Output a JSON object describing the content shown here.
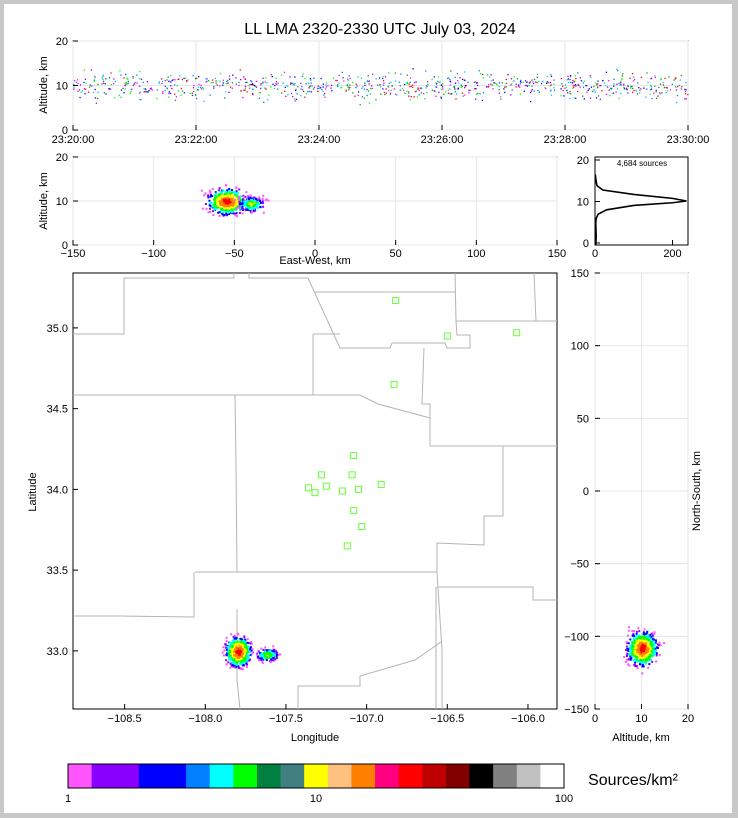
{
  "chart_data": [
    {
      "type": "scatter",
      "panel": "altitude-vs-time",
      "title": "LL LMA 2320-2330 UTC July 03, 2024",
      "xlabel": "",
      "ylabel": "Altitude, km",
      "xticks": [
        "23:20:00",
        "23:22:00",
        "23:24:00",
        "23:26:00",
        "23:28:00",
        "23:30:00"
      ],
      "yticks": [
        "0",
        "10",
        "20"
      ],
      "xlim_minutes": [
        0,
        10
      ],
      "ylim": [
        0,
        20
      ],
      "points": {
        "altitude_km_typical": 10,
        "altitude_km_range": [
          6,
          18
        ],
        "colored_by": "time"
      }
    },
    {
      "type": "heatmap",
      "panel": "altitude-vs-east-west",
      "xlabel": "East-West, km",
      "ylabel": "Altitude, km",
      "xticks": [
        "−150",
        "−100",
        "−50",
        "0",
        "50",
        "100",
        "150"
      ],
      "yticks": [
        "0",
        "10",
        "20"
      ],
      "xlim": [
        -150,
        150
      ],
      "ylim": [
        0,
        20
      ],
      "clusters": [
        {
          "x_km": -55,
          "alt_km": 10,
          "peak": "red"
        },
        {
          "x_km": -40,
          "alt_km": 9.5,
          "peak": "green"
        }
      ]
    },
    {
      "type": "line",
      "panel": "altitude-histogram",
      "annotation": "4,684 sources",
      "xticks": [
        "0",
        "200"
      ],
      "yticks": [
        "0",
        "10",
        "20"
      ],
      "xlim": [
        0,
        240
      ],
      "ylim": [
        0,
        20
      ],
      "profile": [
        {
          "count": 2,
          "alt": 0
        },
        {
          "count": 3,
          "alt": 2
        },
        {
          "count": 2,
          "alt": 5
        },
        {
          "count": 3,
          "alt": 6
        },
        {
          "count": 8,
          "alt": 7
        },
        {
          "count": 30,
          "alt": 8
        },
        {
          "count": 100,
          "alt": 9
        },
        {
          "count": 200,
          "alt": 9.6
        },
        {
          "count": 236,
          "alt": 10
        },
        {
          "count": 200,
          "alt": 10.6
        },
        {
          "count": 100,
          "alt": 11.5
        },
        {
          "count": 20,
          "alt": 12.5
        },
        {
          "count": 5,
          "alt": 13.5
        },
        {
          "count": 2,
          "alt": 15
        },
        {
          "count": 1,
          "alt": 16
        }
      ]
    },
    {
      "type": "heatmap",
      "panel": "map",
      "xlabel": "Longitude",
      "ylabel": "Latitude",
      "xticks": [
        "−108.5",
        "−108.0",
        "−107.5",
        "−107.0",
        "−106.5",
        "−106.0"
      ],
      "yticks": [
        "33.0",
        "33.5",
        "34.0",
        "34.5",
        "35.0"
      ],
      "xlim": [
        -108.82,
        -105.82
      ],
      "ylim": [
        32.64,
        35.34
      ],
      "clusters": [
        {
          "lon": -107.8,
          "lat": 33.0,
          "peak": "red"
        },
        {
          "lon": -107.62,
          "lat": 32.98,
          "peak": "green"
        }
      ],
      "stations": [
        {
          "lon": -106.82,
          "lat": 35.17
        },
        {
          "lon": -106.5,
          "lat": 34.95
        },
        {
          "lon": -106.07,
          "lat": 34.97
        },
        {
          "lon": -106.83,
          "lat": 34.65
        },
        {
          "lon": -107.08,
          "lat": 34.21
        },
        {
          "lon": -107.09,
          "lat": 34.09
        },
        {
          "lon": -107.28,
          "lat": 34.09
        },
        {
          "lon": -107.25,
          "lat": 34.02
        },
        {
          "lon": -107.36,
          "lat": 34.01
        },
        {
          "lon": -107.32,
          "lat": 33.98
        },
        {
          "lon": -107.15,
          "lat": 33.99
        },
        {
          "lon": -107.05,
          "lat": 34.0
        },
        {
          "lon": -106.91,
          "lat": 34.03
        },
        {
          "lon": -107.08,
          "lat": 33.87
        },
        {
          "lon": -107.03,
          "lat": 33.77
        },
        {
          "lon": -107.12,
          "lat": 33.65
        }
      ]
    },
    {
      "type": "heatmap",
      "panel": "north-south-vs-altitude",
      "xlabel": "Altitude, km",
      "ylabel": "North-South, km",
      "xticks": [
        "0",
        "10",
        "20"
      ],
      "yticks": [
        "150",
        "100",
        "50",
        "0",
        "−50",
        "−100",
        "−150"
      ],
      "xlim": [
        0,
        20
      ],
      "ylim": [
        -150,
        150
      ],
      "clusters": [
        {
          "alt_km": 10,
          "y_km": -108,
          "peak": "red"
        }
      ]
    },
    {
      "type": "colorbar",
      "panel": "colorbar",
      "label": "Sources/km²",
      "scale": "log",
      "range": [
        1,
        100
      ],
      "tick_labels": [
        "1",
        "10",
        "100"
      ],
      "colors": [
        "#ff55ff",
        "#8a00ff",
        "#8a00ff",
        "#0000ff",
        "#0000ff",
        "#0080ff",
        "#00ffff",
        "#00ff00",
        "#008040",
        "#408080",
        "#ffff00",
        "#ffc080",
        "#ff8000",
        "#ff0080",
        "#ff0000",
        "#c00000",
        "#800000",
        "#000000",
        "#808080",
        "#c0c0c0",
        "#ffffff"
      ]
    }
  ]
}
